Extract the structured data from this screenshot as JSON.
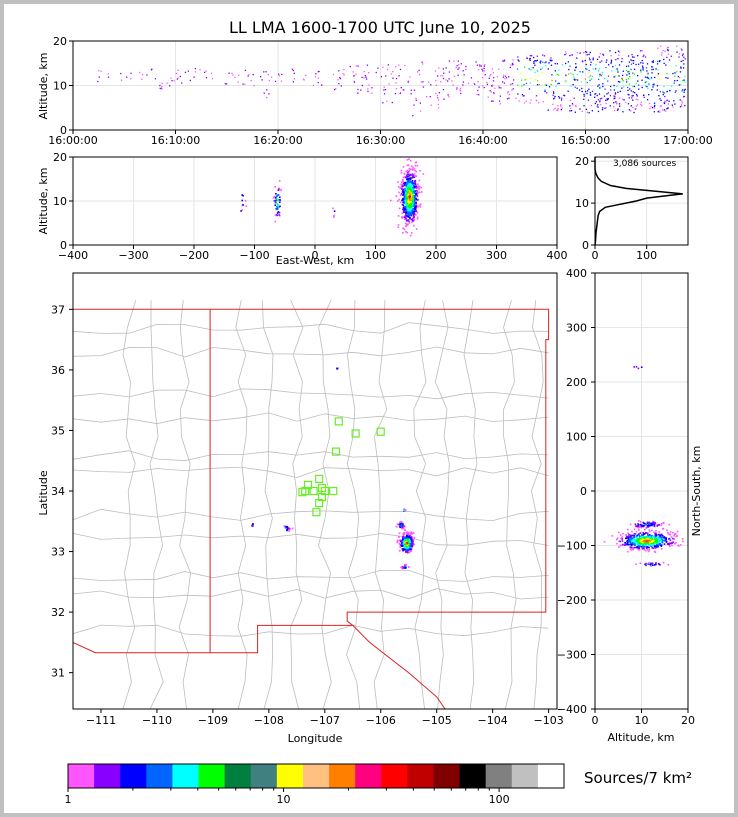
{
  "chart_data": [
    {
      "id": "time-height",
      "type": "scatter",
      "title": "LL LMA 1600-1700 UTC June 10, 2025",
      "ylabel": "Altitude, km",
      "ylim": [
        0,
        20
      ],
      "yticks": [
        "0",
        "10",
        "20"
      ],
      "xticks": [
        "16:00:00",
        "16:10:00",
        "16:20:00",
        "16:30:00",
        "16:40:00",
        "16:50:00",
        "17:00:00"
      ],
      "activity_columns": [
        {
          "t": 3,
          "lo": 11,
          "hi": 14,
          "n": 6
        },
        {
          "t": 5,
          "lo": 11,
          "hi": 13,
          "n": 5
        },
        {
          "t": 7,
          "lo": 11,
          "hi": 14,
          "n": 6
        },
        {
          "t": 8.5,
          "lo": 9,
          "hi": 14,
          "n": 8
        },
        {
          "t": 10,
          "lo": 10,
          "hi": 14,
          "n": 10
        },
        {
          "t": 11.5,
          "lo": 11,
          "hi": 14,
          "n": 6
        },
        {
          "t": 13,
          "lo": 11,
          "hi": 14,
          "n": 6
        },
        {
          "t": 15.5,
          "lo": 10,
          "hi": 14,
          "n": 8
        },
        {
          "t": 17,
          "lo": 10,
          "hi": 14,
          "n": 8
        },
        {
          "t": 18.5,
          "lo": 7,
          "hi": 14,
          "n": 10
        },
        {
          "t": 20,
          "lo": 11,
          "hi": 13,
          "n": 6
        },
        {
          "t": 22,
          "lo": 10,
          "hi": 14,
          "n": 8
        },
        {
          "t": 24,
          "lo": 10,
          "hi": 14,
          "n": 8
        },
        {
          "t": 26,
          "lo": 9,
          "hi": 14,
          "n": 12
        },
        {
          "t": 27.5,
          "lo": 8,
          "hi": 15,
          "n": 14
        },
        {
          "t": 29,
          "lo": 8,
          "hi": 15,
          "n": 14
        },
        {
          "t": 30.5,
          "lo": 6,
          "hi": 15,
          "n": 16
        },
        {
          "t": 32,
          "lo": 8,
          "hi": 15,
          "n": 16
        },
        {
          "t": 33.5,
          "lo": 2,
          "hi": 16,
          "n": 18
        },
        {
          "t": 35,
          "lo": 5,
          "hi": 15,
          "n": 18
        },
        {
          "t": 36.5,
          "lo": 7,
          "hi": 16,
          "n": 20
        },
        {
          "t": 38,
          "lo": 8,
          "hi": 16,
          "n": 22
        },
        {
          "t": 39.5,
          "lo": 8,
          "hi": 16,
          "n": 24
        },
        {
          "t": 41,
          "lo": 6,
          "hi": 16,
          "n": 28
        },
        {
          "t": 42.5,
          "lo": 7,
          "hi": 16,
          "n": 30
        },
        {
          "t": 44,
          "lo": 6,
          "hi": 17,
          "n": 34
        },
        {
          "t": 45.5,
          "lo": 6,
          "hi": 17,
          "n": 40
        },
        {
          "t": 47,
          "lo": 4,
          "hi": 17,
          "n": 46
        },
        {
          "t": 48.5,
          "lo": 4,
          "hi": 18,
          "n": 50
        },
        {
          "t": 50,
          "lo": 4,
          "hi": 18,
          "n": 56
        },
        {
          "t": 51.5,
          "lo": 4,
          "hi": 18,
          "n": 60
        },
        {
          "t": 53,
          "lo": 4,
          "hi": 18,
          "n": 64
        },
        {
          "t": 54.5,
          "lo": 4,
          "hi": 18,
          "n": 66
        },
        {
          "t": 56,
          "lo": 4,
          "hi": 18,
          "n": 66
        },
        {
          "t": 57.5,
          "lo": 4,
          "hi": 19,
          "n": 64
        },
        {
          "t": 59,
          "lo": 5,
          "hi": 19,
          "n": 56
        }
      ]
    },
    {
      "id": "ew-height",
      "type": "scatter",
      "xlabel": "East-West, km",
      "ylabel": "Altitude, km",
      "xlim": [
        -400,
        400
      ],
      "ylim": [
        0,
        20
      ],
      "xticks": [
        "−400",
        "−300",
        "−200",
        "−100",
        "0",
        "100",
        "200",
        "300",
        "400"
      ],
      "yticks": [
        "0",
        "10",
        "20"
      ],
      "clusters": [
        {
          "x": 155,
          "z": 11,
          "sx": 7,
          "sz": 3,
          "n": 700
        },
        {
          "x": -63,
          "z": 10,
          "sx": 3,
          "sz": 1.8,
          "n": 50
        },
        {
          "x": -120,
          "z": 9.5,
          "sx": 2,
          "sz": 1.5,
          "n": 10
        },
        {
          "x": 30,
          "z": 8,
          "sx": 1,
          "sz": 1,
          "n": 4
        }
      ]
    },
    {
      "id": "alt-histogram",
      "type": "line",
      "annotation": "3,086 sources",
      "xlim": [
        0,
        180
      ],
      "ylim": [
        0,
        21
      ],
      "xticks": [
        "0",
        "100"
      ],
      "yticks": [
        "0",
        "10",
        "20"
      ],
      "profile": [
        [
          0,
          0
        ],
        [
          1,
          1
        ],
        [
          2,
          3
        ],
        [
          4,
          5
        ],
        [
          6,
          7
        ],
        [
          9,
          8
        ],
        [
          20,
          9
        ],
        [
          40,
          9.5
        ],
        [
          80,
          10.5
        ],
        [
          100,
          11.2
        ],
        [
          140,
          11.8
        ],
        [
          170,
          12.2
        ],
        [
          120,
          12.8
        ],
        [
          60,
          13.5
        ],
        [
          30,
          14.2
        ],
        [
          12,
          15.2
        ],
        [
          6,
          16
        ],
        [
          2,
          17
        ],
        [
          0,
          18
        ],
        [
          0,
          21
        ]
      ]
    },
    {
      "id": "plan-view",
      "type": "scatter",
      "xlabel": "Longitude",
      "ylabel": "Latitude",
      "xlim": [
        -111.5,
        -102.85
      ],
      "ylim": [
        30.4,
        37.6
      ],
      "xticks": [
        "−111",
        "−110",
        "−109",
        "−108",
        "−107",
        "−106",
        "−105",
        "−104",
        "−103"
      ],
      "yticks": [
        "31",
        "32",
        "33",
        "34",
        "35",
        "36",
        "37"
      ],
      "stations": [
        [
          -107.35,
          34.0
        ],
        [
          -107.3,
          34.1
        ],
        [
          -107.2,
          34.0
        ],
        [
          -107.1,
          34.2
        ],
        [
          -107.05,
          34.05
        ],
        [
          -107.0,
          34.0
        ],
        [
          -106.85,
          34.0
        ],
        [
          -107.05,
          33.9
        ],
        [
          -107.1,
          33.8
        ],
        [
          -107.15,
          33.65
        ],
        [
          -107.4,
          33.98
        ],
        [
          -106.8,
          34.65
        ],
        [
          -106.75,
          35.15
        ],
        [
          -106.45,
          34.95
        ],
        [
          -106.0,
          34.98
        ]
      ],
      "clusters": [
        {
          "lon": -105.55,
          "lat": 33.15,
          "slon": 0.06,
          "slat": 0.08,
          "n": 260
        },
        {
          "lon": -105.65,
          "lat": 33.45,
          "slon": 0.03,
          "slat": 0.03,
          "n": 30
        },
        {
          "lon": -105.6,
          "lat": 33.7,
          "slon": 0.01,
          "slat": 0.01,
          "n": 4
        },
        {
          "lon": -105.58,
          "lat": 32.76,
          "slon": 0.03,
          "slat": 0.015,
          "n": 14
        },
        {
          "lon": -107.7,
          "lat": 33.4,
          "slon": 0.03,
          "slat": 0.03,
          "n": 14
        },
        {
          "lon": -108.3,
          "lat": 33.45,
          "slon": 0.01,
          "slat": 0.02,
          "n": 4
        },
        {
          "lon": -106.8,
          "lat": 36.03,
          "slon": 0.01,
          "slat": 0.01,
          "n": 3
        }
      ]
    },
    {
      "id": "height-ns",
      "type": "scatter",
      "xlabel": "Altitude, km",
      "ylabel": "North-South, km",
      "xlim": [
        0,
        20
      ],
      "ylim": [
        -400,
        400
      ],
      "xticks": [
        "0",
        "10",
        "20"
      ],
      "yticks": [
        "−400",
        "−300",
        "−200",
        "−100",
        "0",
        "100",
        "200",
        "300",
        "400"
      ],
      "clusters": [
        {
          "z": 11,
          "y": -90,
          "sz": 3,
          "sy": 8,
          "n": 520
        },
        {
          "z": 11,
          "y": -60,
          "sz": 1.8,
          "sy": 3,
          "n": 80
        },
        {
          "z": 12,
          "y": -133,
          "sz": 1.5,
          "sy": 1.5,
          "n": 24
        },
        {
          "z": 9,
          "y": 228,
          "sz": 1,
          "sy": 1,
          "n": 4
        }
      ]
    }
  ],
  "colorbar": {
    "label": "Sources/7 km²",
    "ticks": [
      "1",
      "10",
      "100"
    ],
    "colors": [
      "#ff55ff",
      "#8800ff",
      "#0000ff",
      "#0066ff",
      "#00ffff",
      "#00ff00",
      "#008040",
      "#408080",
      "#ffff00",
      "#ffc080",
      "#ff8000",
      "#ff0080",
      "#ff0000",
      "#c00000",
      "#800000",
      "#000000",
      "#808080",
      "#c0c0c0",
      "#ffffff"
    ]
  }
}
